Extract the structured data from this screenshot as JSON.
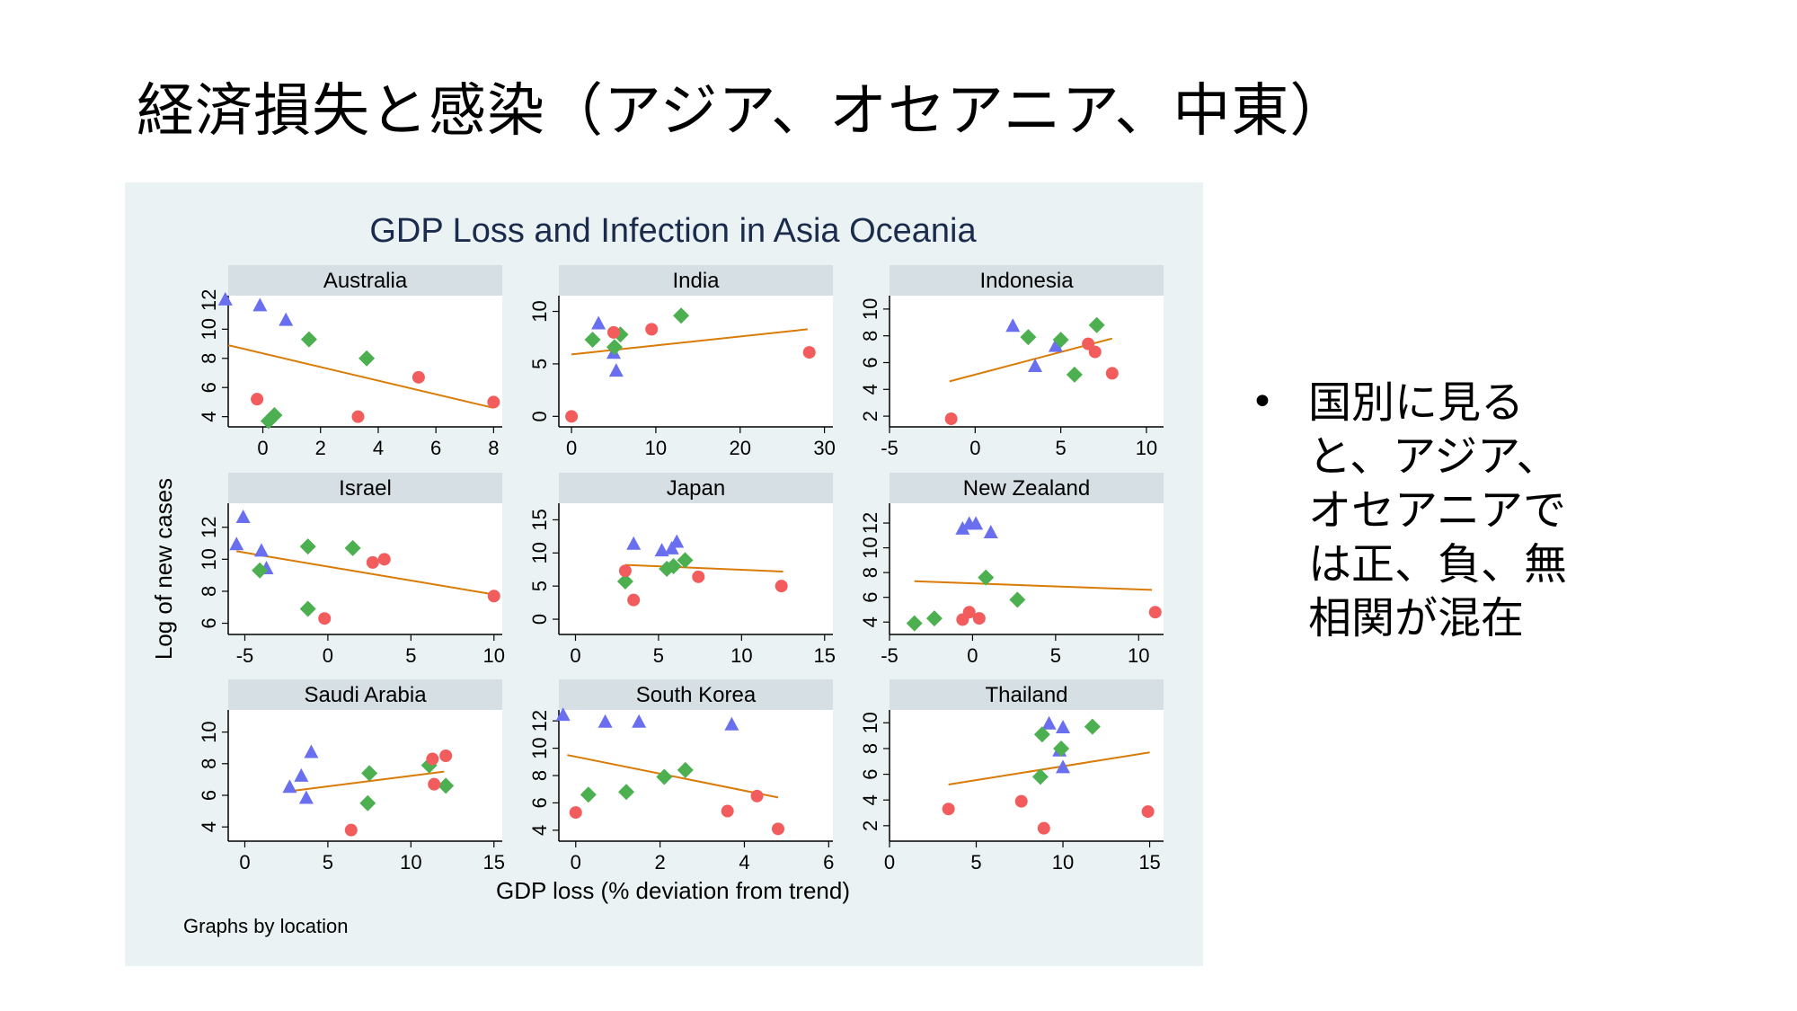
{
  "slide": {
    "title": "経済損失と感染（アジア、オセアニア、中東）",
    "bullet_symbol": "•",
    "bullet_text": "国別に見ると、アジア、オセアニアでは正、負、無相関が混在"
  },
  "colors": {
    "panel_bg": "#eaf2f3",
    "strip_bg": "#d6dfe4",
    "title_color": "#1a2b4c",
    "fit_line": "#d97b06",
    "triangle": "#6a6ff0",
    "diamond": "#4caf50",
    "circle": "#f25c5c"
  },
  "chart_data": {
    "type": "scatter",
    "title": "GDP Loss and Infection in Asia Oceania",
    "xlabel": "GDP loss (% deviation from trend)",
    "ylabel": "Log of new cases",
    "note": "Graphs by location",
    "marker_groups": [
      "triangle",
      "diamond",
      "circle"
    ],
    "panels": [
      {
        "name": "Australia",
        "xlim": [
          -1.2,
          8.3
        ],
        "xticks": [
          0,
          2,
          4,
          6,
          8
        ],
        "ylim": [
          3.3,
          12.3
        ],
        "yticks": [
          4,
          6,
          8,
          10,
          12
        ],
        "fit": [
          [
            -1.2,
            8.9
          ],
          [
            8,
            4.6
          ]
        ],
        "points": {
          "triangle": [
            [
              -1.3,
              12
            ],
            [
              -0.1,
              11.6
            ],
            [
              0.8,
              10.6
            ]
          ],
          "diamond": [
            [
              1.6,
              9.3
            ],
            [
              3.6,
              8.0
            ],
            [
              0.2,
              3.7
            ],
            [
              0.4,
              4.1
            ]
          ],
          "circle": [
            [
              -0.2,
              5.2
            ],
            [
              5.4,
              6.7
            ],
            [
              3.3,
              4.0
            ],
            [
              8.0,
              5.0
            ]
          ]
        }
      },
      {
        "name": "India",
        "xlim": [
          -1.5,
          31
        ],
        "xticks": [
          0,
          10,
          20,
          30
        ],
        "ylim": [
          -1,
          11.5
        ],
        "yticks": [
          0,
          5,
          10
        ],
        "fit": [
          [
            0,
            5.9
          ],
          [
            28,
            8.3
          ]
        ],
        "points": {
          "triangle": [
            [
              3.2,
              8.8
            ],
            [
              5,
              6.0
            ],
            [
              5.3,
              4.3
            ]
          ],
          "diamond": [
            [
              2.5,
              7.3
            ],
            [
              5.8,
              7.8
            ],
            [
              13,
              9.6
            ],
            [
              5.1,
              6.6
            ]
          ],
          "circle": [
            [
              0,
              0
            ],
            [
              5,
              8.0
            ],
            [
              9.5,
              8.3
            ],
            [
              28.2,
              6.1
            ]
          ]
        }
      },
      {
        "name": "Indonesia",
        "xlim": [
          -5,
          11
        ],
        "xticks": [
          -5,
          0,
          5,
          10
        ],
        "ylim": [
          1.2,
          11.0
        ],
        "yticks": [
          2,
          4,
          6,
          8,
          10
        ],
        "fit": [
          [
            -1.5,
            4.6
          ],
          [
            8,
            7.8
          ]
        ],
        "points": {
          "triangle": [
            [
              2.2,
              8.7
            ],
            [
              3.5,
              5.7
            ],
            [
              4.7,
              7.2
            ]
          ],
          "diamond": [
            [
              3.1,
              7.9
            ],
            [
              5,
              7.7
            ],
            [
              7.1,
              8.8
            ],
            [
              5.8,
              5.1
            ]
          ],
          "circle": [
            [
              -1.4,
              1.8
            ],
            [
              6.6,
              7.4
            ],
            [
              7,
              6.8
            ],
            [
              8.0,
              5.2
            ]
          ]
        }
      },
      {
        "name": "Israel",
        "xlim": [
          -6,
          10.5
        ],
        "xticks": [
          -5,
          0,
          5,
          10
        ],
        "ylim": [
          5.3,
          13.5
        ],
        "yticks": [
          6,
          8,
          10,
          12
        ],
        "fit": [
          [
            -5.5,
            10.5
          ],
          [
            10,
            7.8
          ]
        ],
        "points": {
          "triangle": [
            [
              -5.1,
              12.6
            ],
            [
              -5.5,
              10.9
            ],
            [
              -4,
              10.5
            ],
            [
              -3.7,
              9.4
            ]
          ],
          "diamond": [
            [
              -4.1,
              9.3
            ],
            [
              -1.2,
              10.8
            ],
            [
              1.5,
              10.7
            ],
            [
              -1.2,
              6.9
            ]
          ],
          "circle": [
            [
              -0.2,
              6.3
            ],
            [
              2.7,
              9.8
            ],
            [
              3.4,
              10.0
            ],
            [
              10,
              7.7
            ]
          ]
        }
      },
      {
        "name": "Japan",
        "xlim": [
          -1,
          15.5
        ],
        "xticks": [
          0,
          5,
          10,
          15
        ],
        "ylim": [
          -2.3,
          17.5
        ],
        "yticks": [
          0,
          5,
          10,
          15
        ],
        "fit": [
          [
            3,
            8.2
          ],
          [
            12.5,
            7.2
          ]
        ],
        "points": {
          "triangle": [
            [
              3.5,
              11.3
            ],
            [
              5.2,
              10.3
            ],
            [
              5.8,
              10.6
            ],
            [
              6.1,
              11.6
            ]
          ],
          "diamond": [
            [
              3,
              5.7
            ],
            [
              5.5,
              7.6
            ],
            [
              5.9,
              8.0
            ],
            [
              6.6,
              8.9
            ]
          ],
          "circle": [
            [
              3,
              7.3
            ],
            [
              3.5,
              2.9
            ],
            [
              7.4,
              6.4
            ],
            [
              12.4,
              5.0
            ]
          ]
        }
      },
      {
        "name": "New Zealand",
        "xlim": [
          -5,
          11.5
        ],
        "xticks": [
          -5,
          0,
          5,
          10
        ],
        "ylim": [
          3.0,
          13.6
        ],
        "yticks": [
          4,
          6,
          8,
          10,
          12
        ],
        "fit": [
          [
            -3.5,
            7.3
          ],
          [
            10.8,
            6.6
          ]
        ],
        "points": {
          "triangle": [
            [
              -0.6,
              11.5
            ],
            [
              -0.2,
              11.9
            ],
            [
              0.2,
              11.9
            ],
            [
              1.1,
              11.2
            ]
          ],
          "diamond": [
            [
              -3.5,
              3.9
            ],
            [
              -2.3,
              4.3
            ],
            [
              0.8,
              7.6
            ],
            [
              2.7,
              5.8
            ]
          ],
          "circle": [
            [
              -0.6,
              4.2
            ],
            [
              -0.2,
              4.8
            ],
            [
              0.4,
              4.3
            ],
            [
              11.0,
              4.8
            ]
          ]
        }
      },
      {
        "name": "Saudi Arabia",
        "xlim": [
          -1,
          15.5
        ],
        "xticks": [
          0,
          5,
          10,
          15
        ],
        "ylim": [
          3.1,
          11.4
        ],
        "yticks": [
          4,
          6,
          8,
          10
        ],
        "fit": [
          [
            3,
            6.3
          ],
          [
            12,
            7.5
          ]
        ],
        "points": {
          "triangle": [
            [
              2.7,
              6.5
            ],
            [
              3.4,
              7.2
            ],
            [
              3.7,
              5.8
            ],
            [
              4,
              8.7
            ]
          ],
          "diamond": [
            [
              7.5,
              7.4
            ],
            [
              7.4,
              5.5
            ],
            [
              11.1,
              7.9
            ],
            [
              12.1,
              6.6
            ]
          ],
          "circle": [
            [
              6.4,
              3.8
            ],
            [
              11.3,
              8.3
            ],
            [
              12.1,
              8.5
            ],
            [
              11.4,
              6.7
            ]
          ]
        }
      },
      {
        "name": "South Korea",
        "xlim": [
          -0.4,
          6.1
        ],
        "xticks": [
          0,
          2,
          4,
          6
        ],
        "ylim": [
          3.2,
          12.8
        ],
        "yticks": [
          4,
          6,
          8,
          10,
          12
        ],
        "fit": [
          [
            -0.2,
            9.5
          ],
          [
            4.8,
            6.4
          ]
        ],
        "points": {
          "triangle": [
            [
              -0.3,
              12.4
            ],
            [
              0.7,
              11.9
            ],
            [
              1.5,
              11.9
            ],
            [
              3.7,
              11.7
            ]
          ],
          "diamond": [
            [
              0.3,
              6.6
            ],
            [
              1.2,
              6.8
            ],
            [
              2.1,
              7.9
            ],
            [
              2.6,
              8.4
            ]
          ],
          "circle": [
            [
              0,
              5.3
            ],
            [
              3.6,
              5.4
            ],
            [
              4.3,
              6.5
            ],
            [
              4.8,
              4.1
            ]
          ]
        }
      },
      {
        "name": "Thailand",
        "xlim": [
          0,
          15.8
        ],
        "xticks": [
          0,
          5,
          10,
          15
        ],
        "ylim": [
          0.8,
          11.0
        ],
        "yticks": [
          2,
          4,
          6,
          8,
          10
        ],
        "fit": [
          [
            3.4,
            5.2
          ],
          [
            15,
            7.7
          ]
        ],
        "points": {
          "triangle": [
            [
              9.2,
              9.9
            ],
            [
              10,
              9.6
            ],
            [
              9.8,
              7.8
            ],
            [
              10,
              6.5
            ]
          ],
          "diamond": [
            [
              8.8,
              9.1
            ],
            [
              11.7,
              9.7
            ],
            [
              9.9,
              8.0
            ],
            [
              8.7,
              5.8
            ]
          ],
          "circle": [
            [
              3.4,
              3.3
            ],
            [
              7.6,
              3.9
            ],
            [
              8.9,
              1.8
            ],
            [
              14.9,
              3.1
            ]
          ]
        }
      }
    ]
  }
}
